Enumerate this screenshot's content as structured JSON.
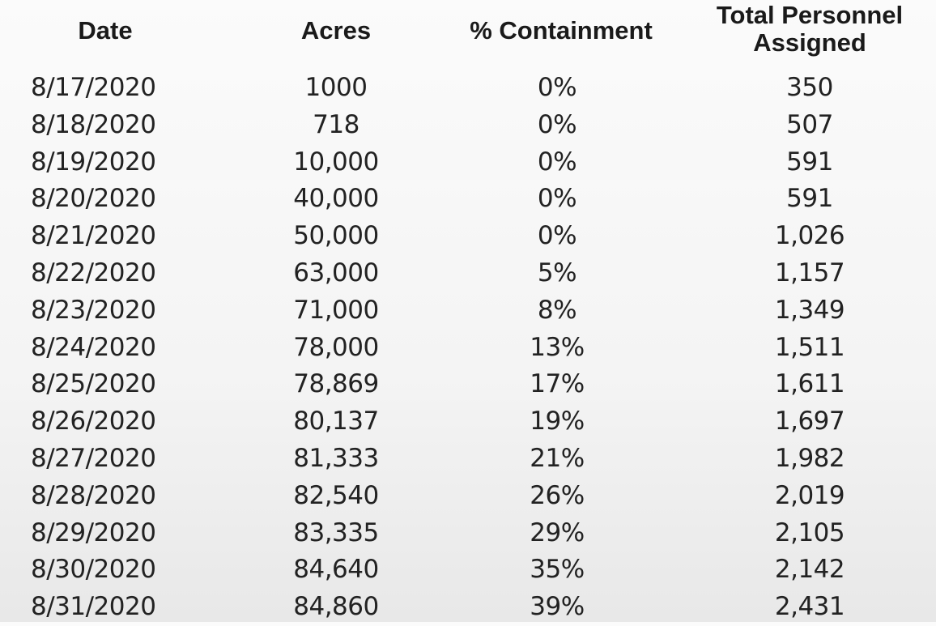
{
  "table": {
    "headers": {
      "date": "Date",
      "acres": "Acres",
      "containment": "% Containment",
      "personnel_line1": "Total Personnel",
      "personnel_line2": "Assigned"
    },
    "rows": [
      {
        "date": "8/17/2020",
        "acres": "1000",
        "containment": "0%",
        "personnel": "350"
      },
      {
        "date": "8/18/2020",
        "acres": "718",
        "containment": "0%",
        "personnel": "507"
      },
      {
        "date": "8/19/2020",
        "acres": "10,000",
        "containment": "0%",
        "personnel": "591"
      },
      {
        "date": "8/20/2020",
        "acres": "40,000",
        "containment": "0%",
        "personnel": "591"
      },
      {
        "date": "8/21/2020",
        "acres": "50,000",
        "containment": "0%",
        "personnel": "1,026"
      },
      {
        "date": "8/22/2020",
        "acres": "63,000",
        "containment": "5%",
        "personnel": "1,157"
      },
      {
        "date": "8/23/2020",
        "acres": "71,000",
        "containment": "8%",
        "personnel": "1,349"
      },
      {
        "date": "8/24/2020",
        "acres": "78,000",
        "containment": "13%",
        "personnel": "1,511"
      },
      {
        "date": "8/25/2020",
        "acres": "78,869",
        "containment": "17%",
        "personnel": "1,611"
      },
      {
        "date": "8/26/2020",
        "acres": "80,137",
        "containment": "19%",
        "personnel": "1,697"
      },
      {
        "date": "8/27/2020",
        "acres": "81,333",
        "containment": "21%",
        "personnel": "1,982"
      },
      {
        "date": "8/28/2020",
        "acres": "82,540",
        "containment": "26%",
        "personnel": "2,019"
      },
      {
        "date": "8/29/2020",
        "acres": "83,335",
        "containment": "29%",
        "personnel": "2,105"
      },
      {
        "date": "8/30/2020",
        "acres": "84,640",
        "containment": "35%",
        "personnel": "2,142"
      },
      {
        "date": "8/31/2020",
        "acres": "84,860",
        "containment": "39%",
        "personnel": "2,431"
      }
    ]
  }
}
